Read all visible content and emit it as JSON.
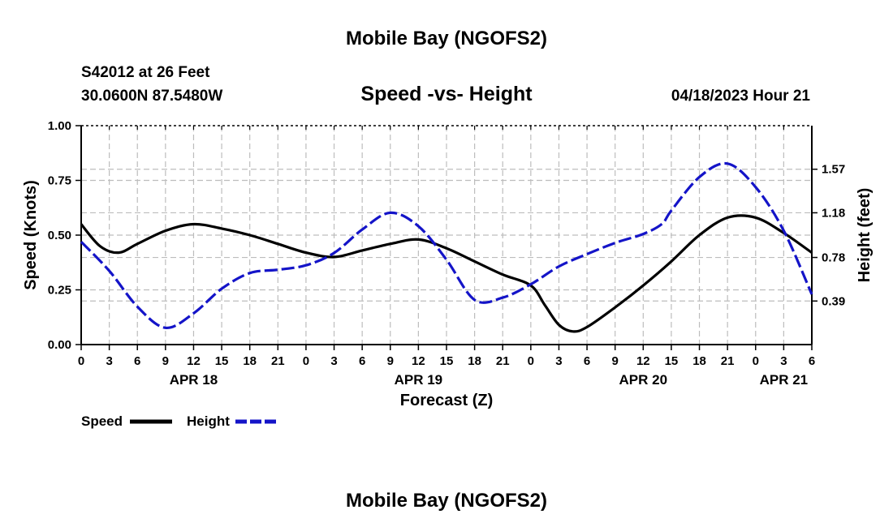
{
  "page": {
    "title": "Mobile Bay (NGOFS2)",
    "footer_title": "Mobile Bay (NGOFS2)",
    "station": "S42012 at 26 Feet",
    "coords": "30.0600N  87.5480W",
    "subtitle": "Speed -vs- Height",
    "datetime": "04/18/2023 Hour 21"
  },
  "chart_data": {
    "type": "line",
    "title": "Speed -vs- Height",
    "xlabel": "Forecast (Z)",
    "ylabel_left": "Speed (Knots)",
    "ylabel_right": "Height (feet)",
    "x_unit": "hours from APR 18 00Z",
    "xlim": [
      0,
      78
    ],
    "ylim_left": [
      0,
      1.0
    ],
    "ylim_right": [
      0,
      1.96
    ],
    "grid": true,
    "x_ticks": [
      0,
      3,
      6,
      9,
      12,
      15,
      18,
      21,
      24,
      27,
      30,
      33,
      36,
      39,
      42,
      45,
      48,
      51,
      54,
      57,
      60,
      63,
      66,
      69,
      72,
      75,
      78
    ],
    "x_tick_labels": [
      "0",
      "3",
      "6",
      "9",
      "12",
      "15",
      "18",
      "21",
      "0",
      "3",
      "6",
      "9",
      "12",
      "15",
      "18",
      "21",
      "0",
      "3",
      "6",
      "9",
      "12",
      "15",
      "18",
      "21",
      "0",
      "3",
      "6"
    ],
    "date_labels": [
      {
        "x": 12,
        "label": "APR 18"
      },
      {
        "x": 36,
        "label": "APR 19"
      },
      {
        "x": 60,
        "label": "APR 20"
      },
      {
        "x": 75,
        "label": "APR 21"
      }
    ],
    "y_left_ticks": [
      0.0,
      0.25,
      0.5,
      0.75,
      1.0
    ],
    "y_left_tick_labels": [
      "0.00",
      "0.25",
      "0.50",
      "0.75",
      "1.00"
    ],
    "y_right_ticks": [
      0.39,
      0.78,
      1.18,
      1.57
    ],
    "y_right_tick_labels": [
      "0.39",
      "0.78",
      "1.18",
      "1.57"
    ],
    "series": [
      {
        "name": "Speed",
        "axis": "left",
        "color": "#000000",
        "style": "solid",
        "x": [
          0,
          2,
          4,
          6,
          9,
          12,
          15,
          18,
          21,
          24,
          27,
          30,
          33,
          36,
          39,
          42,
          45,
          48,
          49.5,
          51,
          52.5,
          54,
          57,
          60,
          63,
          66,
          69,
          72,
          75,
          78
        ],
        "values": [
          0.55,
          0.45,
          0.42,
          0.46,
          0.52,
          0.55,
          0.53,
          0.5,
          0.46,
          0.42,
          0.4,
          0.43,
          0.46,
          0.48,
          0.44,
          0.38,
          0.32,
          0.27,
          0.18,
          0.09,
          0.06,
          0.08,
          0.17,
          0.27,
          0.38,
          0.5,
          0.58,
          0.58,
          0.51,
          0.42
        ]
      },
      {
        "name": "Height",
        "axis": "right",
        "color": "#1414c8",
        "style": "dashed",
        "x": [
          0,
          3,
          6,
          9,
          12,
          15,
          18,
          21,
          24,
          27,
          30,
          33,
          36,
          39,
          42,
          45,
          48,
          51,
          54,
          57,
          60,
          62,
          63,
          66,
          69,
          72,
          75,
          78
        ],
        "values": [
          0.92,
          0.66,
          0.34,
          0.15,
          0.28,
          0.5,
          0.64,
          0.67,
          0.71,
          0.82,
          1.03,
          1.18,
          1.06,
          0.76,
          0.4,
          0.42,
          0.54,
          0.7,
          0.81,
          0.91,
          0.99,
          1.08,
          1.2,
          1.5,
          1.62,
          1.41,
          1.02,
          0.45
        ]
      }
    ],
    "legend": {
      "placement": "bottom-left",
      "items": [
        {
          "label": "Speed",
          "color": "#000000",
          "style": "solid"
        },
        {
          "label": "Height",
          "color": "#1414c8",
          "style": "dashed"
        }
      ]
    }
  }
}
